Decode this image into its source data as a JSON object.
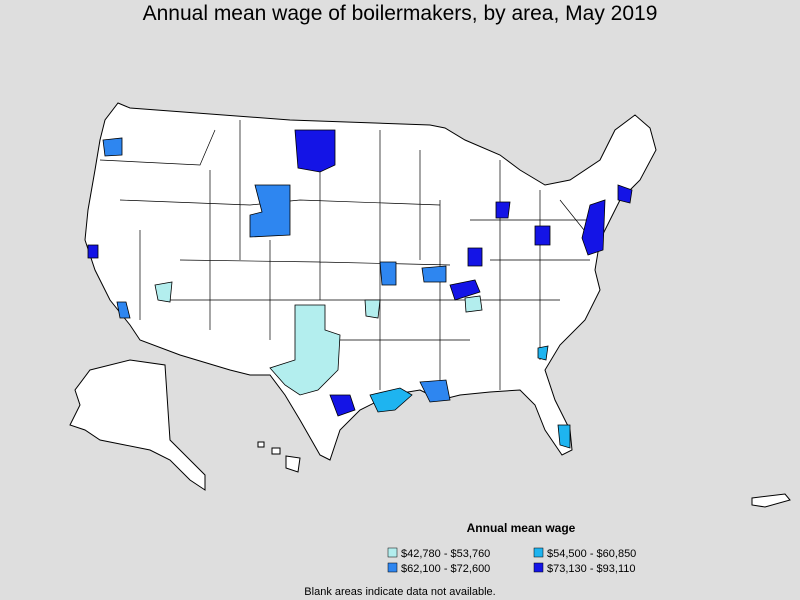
{
  "title": "Annual mean wage of boilermakers, by area, May 2019",
  "legend": {
    "title": "Annual mean wage",
    "items": [
      {
        "label": "$42,780 - $53,760",
        "color": "#b3eeee"
      },
      {
        "label": "$54,500 - $60,850",
        "color": "#1eb4f0"
      },
      {
        "label": "$62,100 - $72,600",
        "color": "#2e86f0"
      },
      {
        "label": "$73,130 - $93,110",
        "color": "#1414e6"
      }
    ]
  },
  "note": "Blank areas indicate data not available."
}
